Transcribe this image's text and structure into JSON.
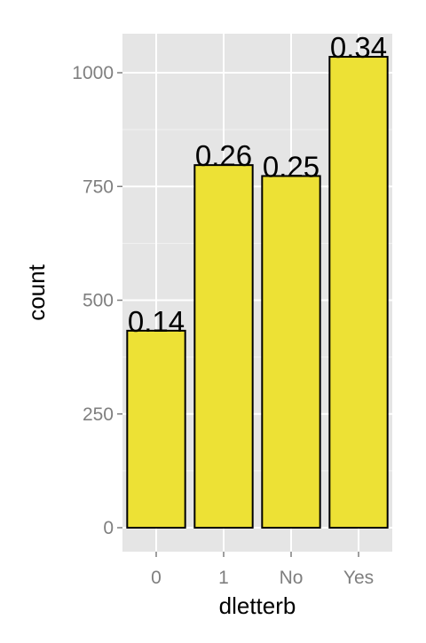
{
  "chart_data": {
    "type": "bar",
    "categories": [
      "0",
      "1",
      "No",
      "Yes"
    ],
    "values": [
      433,
      797,
      773,
      1035
    ],
    "bar_labels": [
      "0.14",
      "0.26",
      "0.25",
      "0.34"
    ],
    "title": "",
    "xlabel": "dletterb",
    "ylabel": "count",
    "ylim": [
      -50,
      1085
    ],
    "yticks": [
      0,
      250,
      500,
      750,
      1000
    ],
    "ytick_labels": [
      "0",
      "250",
      "500",
      "750",
      "1000"
    ],
    "grid": true,
    "legend": "none",
    "colors": {
      "panel_background": "#e5e5e5",
      "grid_major": "#ffffff",
      "grid_minor": "#f2f2f2",
      "bar_fill": "#ede135",
      "bar_outline": "#000000",
      "tick_text": "#7f7f7f",
      "tick_mark": "#7f7f7f"
    }
  }
}
